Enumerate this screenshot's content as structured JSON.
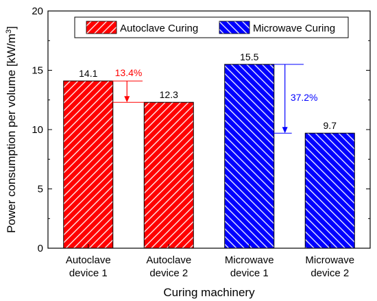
{
  "chart_data": {
    "type": "bar",
    "title": "",
    "xlabel": "Curing machinery",
    "ylabel": "Power consumption per volume [kW/m",
    "ylabel_sup": "3",
    "ylabel_close": "]",
    "ylim": [
      0,
      20
    ],
    "yticks": [
      "0",
      "5",
      "10",
      "15",
      "20"
    ],
    "grid": false,
    "legend_position": "top",
    "categories": [
      [
        "Autoclave",
        "device 1"
      ],
      [
        "Autoclave",
        "device 2"
      ],
      [
        "Microwave",
        "device 1"
      ],
      [
        "Microwave",
        "device 2"
      ]
    ],
    "values": [
      14.1,
      12.3,
      15.5,
      9.7
    ],
    "value_labels": [
      "14.1",
      "12.3",
      "15.5",
      "9.7"
    ],
    "series": [
      {
        "name": "Autoclave Curing",
        "color": "#ff0000",
        "pattern": "diagonal-hatch-up",
        "bars": [
          0,
          1
        ]
      },
      {
        "name": "Microwave Curing",
        "color": "#0000ff",
        "pattern": "diagonal-hatch-down",
        "bars": [
          2,
          3
        ]
      }
    ],
    "annotations": [
      {
        "text": "13.4%",
        "from": 14.1,
        "to": 12.3,
        "color": "#ff0000",
        "between_bars": [
          0,
          1
        ]
      },
      {
        "text": "37.2%",
        "from": 15.5,
        "to": 9.7,
        "color": "#0000ff",
        "between_bars": [
          2,
          3
        ]
      }
    ]
  }
}
